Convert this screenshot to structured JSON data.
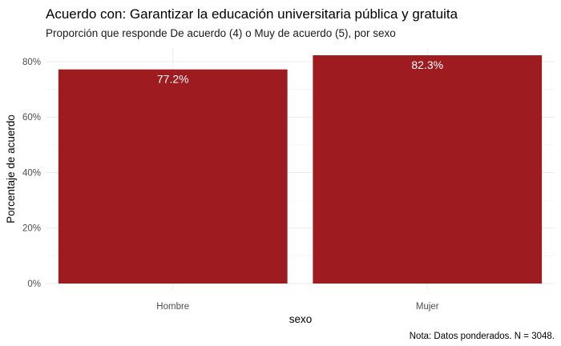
{
  "chart_data": {
    "type": "bar",
    "title": "Acuerdo con: Garantizar la educación universitaria pública y gratuita",
    "subtitle": "Proporción que responde De acuerdo (4) o Muy de acuerdo (5), por sexo",
    "xlabel": "sexo",
    "ylabel": "Porcentaje de acuerdo",
    "caption": "Nota: Datos ponderados. N = 3048.",
    "categories": [
      "Hombre",
      "Mujer"
    ],
    "values": [
      77.2,
      82.3
    ],
    "value_labels": [
      "77.2%",
      "82.3%"
    ],
    "ylim": [
      0,
      82.3
    ],
    "yticks": [
      0,
      20,
      40,
      60,
      80
    ],
    "ytick_labels": [
      "0%",
      "20%",
      "40%",
      "60%",
      "80%"
    ],
    "grid": true,
    "legend": "none",
    "bar_color": "#9E1B1F"
  }
}
